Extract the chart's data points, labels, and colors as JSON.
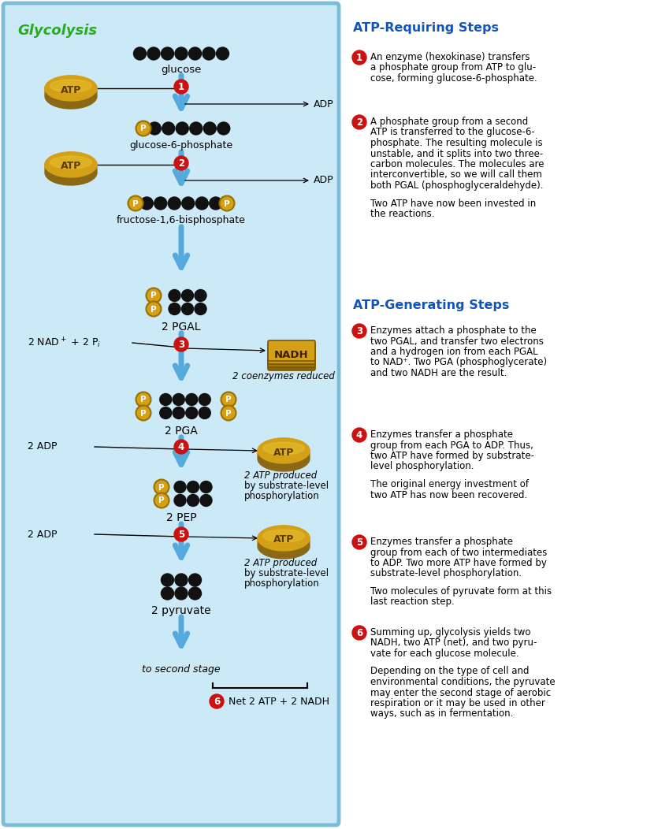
{
  "title": "Glycolysis",
  "title_color": "#2aaa20",
  "bg_left_fill": "#cce9f7",
  "bg_border_color": "#7bbcd6",
  "arrow_color": "#55aadd",
  "step_circle_color": "#cc1111",
  "atp_gold_top": "#e8c030",
  "atp_gold_mid": "#d4a017",
  "atp_gold_bot": "#a07800",
  "molecule_black": "#111111",
  "phosphate_fill": "#d4a017",
  "phosphate_border": "#9a7000",
  "right_heading_color": "#1155bb",
  "section1_title": "ATP-Requiring Steps",
  "section2_title": "ATP-Generating Steps",
  "step1_text": "An enzyme (hexokinase) transfers\na phosphate group from ATP to glu-\ncose, forming glucose-6-phosphate.",
  "step2_text": "A phosphate group from a second\nATP is transferred to the glucose-6-\nphosphate. The resulting molecule is\nunstable, and it splits into two three-\ncarbon molecules. The molecules are\ninterconvertible, so we will call them\nboth PGAL (phosphoglyceraldehyde).\n\nTwo ATP have now been invested in\nthe reactions.",
  "step3_text": "Enzymes attach a phosphate to the\ntwo PGAL, and transfer two electrons\nand a hydrogen ion from each PGAL\nto NAD⁺. Two PGA (phosphoglycerate)\nand two NADH are the result.",
  "step4_text": "Enzymes transfer a phosphate\ngroup from each PGA to ADP. Thus,\ntwo ATP have formed by substrate-\nlevel phosphorylation.\n\nThe original energy investment of\ntwo ATP has now been recovered.",
  "step5_text": "Enzymes transfer a phosphate\ngroup from each of two intermediates\nto ADP. Two more ATP have formed by\nsubstrate-level phosphorylation.\n\nTwo molecules of pyruvate form at this\nlast reaction step.",
  "step6_text": "Summing up, glycolysis yields two\nNADH, two ATP (net), and two pyru-\nvate for each glucose molecule.\n\nDepending on the type of cell and\nenvironmental conditions, the pyruvate\nmay enter the second stage of aerobic\nrespiration or it may be used in other\nways, such as in fermentation."
}
